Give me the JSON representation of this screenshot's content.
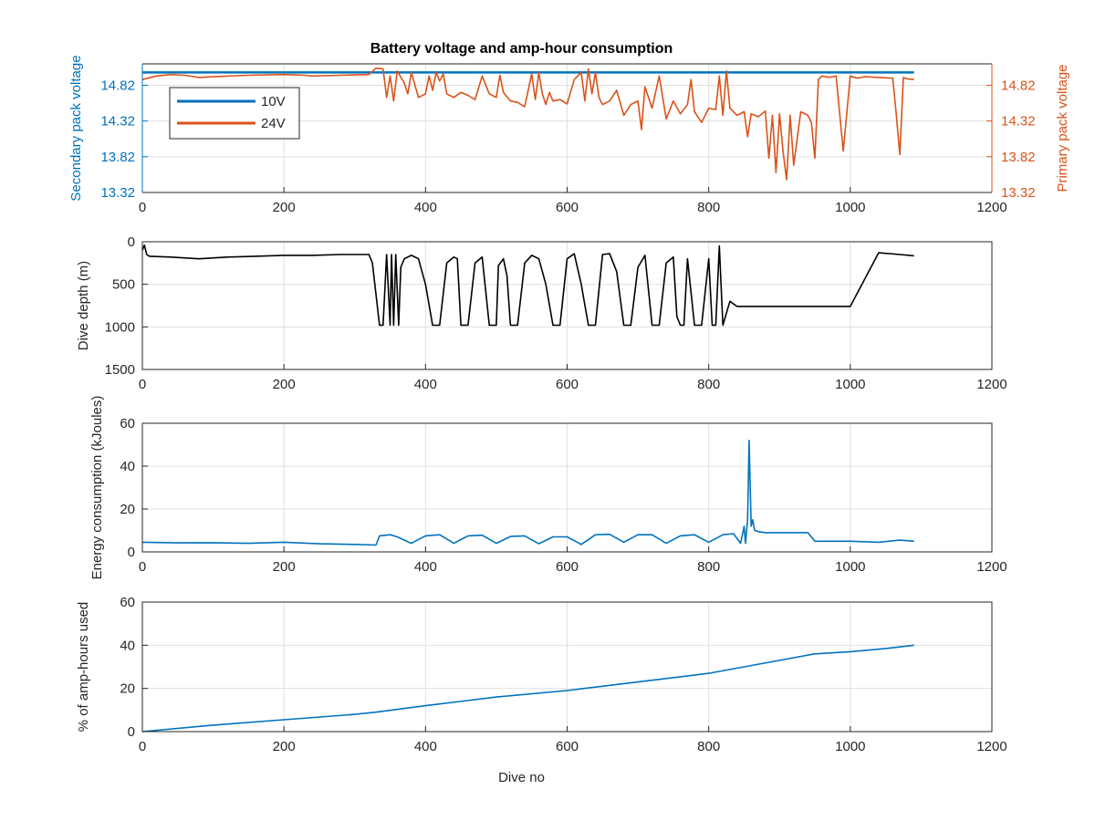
{
  "chart_data": [
    {
      "type": "line",
      "title": "Battery voltage and amp-hour consumption",
      "xlabel": "",
      "ylabel": "Secondary pack voltage",
      "ylabel_right": "Primary pack voltage",
      "xlim": [
        0,
        1200
      ],
      "ylim": [
        13.32,
        15.12
      ],
      "ylim_right": [
        13.32,
        15.12
      ],
      "x_ticks": [
        "0",
        "200",
        "400",
        "600",
        "800",
        "1000",
        "1200"
      ],
      "y_ticks": [
        "13.32",
        "13.82",
        "14.32",
        "14.82"
      ],
      "y_ticks_right": [
        "13.32",
        "13.82",
        "14.32",
        "14.82"
      ],
      "grid": true,
      "legend": "top-left",
      "colors": {
        "left_axis": "#0072BD",
        "right_axis": "#D95319"
      },
      "series": [
        {
          "name": "10V",
          "color": "#0072BD",
          "axis": "left",
          "x": [
            0,
            1090
          ],
          "y": [
            15.0,
            15.0
          ]
        },
        {
          "name": "24V",
          "color": "#D95319",
          "axis": "right",
          "x": [
            0,
            20,
            40,
            60,
            80,
            100,
            150,
            200,
            230,
            240,
            280,
            320,
            330,
            340,
            345,
            350,
            355,
            360,
            370,
            375,
            380,
            390,
            400,
            405,
            410,
            415,
            420,
            425,
            430,
            440,
            450,
            460,
            470,
            480,
            490,
            500,
            505,
            510,
            520,
            530,
            540,
            550,
            555,
            560,
            565,
            570,
            575,
            580,
            590,
            600,
            610,
            620,
            625,
            630,
            635,
            640,
            645,
            650,
            660,
            670,
            680,
            690,
            700,
            705,
            710,
            720,
            730,
            740,
            750,
            760,
            770,
            775,
            780,
            790,
            800,
            810,
            815,
            820,
            825,
            830,
            840,
            850,
            855,
            860,
            870,
            880,
            885,
            890,
            895,
            900,
            905,
            910,
            915,
            920,
            930,
            940,
            945,
            950,
            955,
            960,
            970,
            980,
            990,
            1000,
            1010,
            1020,
            1040,
            1060,
            1065,
            1070,
            1075,
            1080,
            1090
          ],
          "y": [
            14.9,
            14.95,
            14.97,
            14.96,
            14.93,
            14.94,
            14.96,
            14.97,
            14.96,
            14.95,
            14.96,
            14.97,
            15.06,
            15.05,
            14.65,
            14.95,
            14.6,
            15.02,
            14.85,
            14.7,
            15.0,
            14.65,
            14.7,
            14.95,
            14.75,
            15.0,
            14.88,
            14.98,
            14.7,
            14.65,
            14.72,
            14.68,
            14.62,
            14.95,
            14.7,
            14.65,
            14.96,
            14.72,
            14.6,
            14.58,
            14.52,
            14.98,
            14.62,
            15.0,
            14.7,
            14.55,
            14.72,
            14.6,
            14.62,
            14.56,
            14.9,
            15.0,
            14.6,
            15.05,
            14.7,
            15.0,
            14.65,
            14.55,
            14.6,
            14.75,
            14.4,
            14.55,
            14.6,
            14.2,
            14.8,
            14.5,
            14.95,
            14.35,
            14.6,
            14.42,
            14.55,
            14.9,
            14.45,
            14.3,
            14.5,
            14.48,
            14.95,
            14.4,
            15.02,
            14.5,
            14.4,
            14.45,
            14.1,
            14.42,
            14.38,
            14.46,
            13.8,
            14.4,
            13.6,
            14.42,
            13.9,
            13.5,
            14.4,
            13.7,
            14.45,
            14.4,
            14.3,
            13.8,
            14.9,
            14.95,
            14.93,
            14.95,
            13.9,
            14.95,
            14.92,
            14.94,
            14.93,
            14.92,
            14.4,
            13.85,
            14.93,
            14.91,
            14.9
          ]
        }
      ]
    },
    {
      "type": "line",
      "xlabel": "",
      "ylabel": "Dive depth (m)",
      "xlim": [
        0,
        1200
      ],
      "ylim": [
        0,
        1500
      ],
      "y_reversed": true,
      "x_ticks": [
        "0",
        "200",
        "400",
        "600",
        "800",
        "1000",
        "1200"
      ],
      "y_ticks": [
        "0",
        "500",
        "1000",
        "1500"
      ],
      "grid": true,
      "series": [
        {
          "color": "#000000",
          "x": [
            0,
            3,
            6,
            10,
            40,
            80,
            120,
            160,
            200,
            240,
            280,
            300,
            320,
            325,
            335,
            340,
            345,
            350,
            352,
            355,
            358,
            362,
            365,
            370,
            380,
            390,
            400,
            410,
            420,
            430,
            440,
            445,
            450,
            460,
            470,
            480,
            490,
            500,
            503,
            510,
            515,
            520,
            530,
            540,
            550,
            560,
            570,
            580,
            590,
            600,
            610,
            620,
            630,
            640,
            650,
            660,
            670,
            680,
            690,
            700,
            710,
            720,
            730,
            740,
            750,
            755,
            760,
            765,
            770,
            780,
            790,
            800,
            805,
            810,
            815,
            820,
            830,
            840,
            845,
            850,
            852,
            855,
            858,
            860,
            862,
            866,
            870,
            880,
            900,
            920,
            940,
            945,
            950,
            955,
            960,
            1000,
            1040,
            1070,
            1090
          ],
          "y": [
            100,
            40,
            150,
            170,
            180,
            200,
            180,
            170,
            160,
            160,
            150,
            150,
            150,
            250,
            980,
            980,
            150,
            980,
            150,
            980,
            150,
            980,
            300,
            200,
            160,
            200,
            500,
            980,
            980,
            250,
            180,
            200,
            980,
            980,
            250,
            180,
            980,
            980,
            280,
            200,
            400,
            980,
            980,
            250,
            160,
            200,
            500,
            980,
            980,
            200,
            140,
            500,
            980,
            980,
            150,
            140,
            350,
            980,
            980,
            300,
            160,
            980,
            980,
            250,
            180,
            880,
            980,
            980,
            200,
            980,
            980,
            200,
            980,
            980,
            50,
            980,
            700,
            760,
            760,
            760,
            760,
            760,
            760,
            760,
            760,
            760,
            760,
            760,
            760,
            760,
            760,
            760,
            760,
            760,
            760,
            760,
            130,
            150,
            165
          ]
        }
      ]
    },
    {
      "type": "line",
      "xlabel": "",
      "ylabel": "Energy consumption (kJoules)",
      "xlim": [
        0,
        1200
      ],
      "ylim": [
        0,
        60
      ],
      "x_ticks": [
        "0",
        "200",
        "400",
        "600",
        "800",
        "1000",
        "1200"
      ],
      "y_ticks": [
        "0",
        "20",
        "40",
        "60"
      ],
      "grid": true,
      "series": [
        {
          "color": "#0072BD",
          "x": [
            0,
            50,
            100,
            150,
            200,
            250,
            300,
            330,
            335,
            350,
            360,
            380,
            400,
            420,
            440,
            460,
            480,
            500,
            520,
            540,
            560,
            580,
            600,
            620,
            640,
            660,
            680,
            700,
            720,
            740,
            760,
            780,
            800,
            820,
            835,
            845,
            850,
            852,
            855,
            857,
            860,
            862,
            865,
            870,
            880,
            900,
            920,
            940,
            950,
            960,
            1000,
            1040,
            1070,
            1090
          ],
          "y": [
            4.5,
            4.2,
            4.3,
            4.0,
            4.5,
            3.8,
            3.5,
            3.2,
            7.5,
            8.0,
            7.0,
            4.0,
            7.5,
            8.0,
            4.0,
            7.5,
            7.8,
            4.0,
            7.2,
            7.5,
            3.8,
            7.0,
            7.0,
            3.5,
            8.0,
            8.2,
            4.5,
            8.0,
            8.0,
            4.0,
            7.5,
            8.0,
            4.5,
            8.0,
            8.5,
            4.0,
            12.0,
            4.0,
            15.0,
            52.0,
            12.0,
            15.0,
            10.0,
            9.5,
            9.0,
            9.0,
            9.0,
            9.0,
            5.0,
            5.0,
            5.0,
            4.5,
            5.5,
            5.0
          ]
        }
      ]
    },
    {
      "type": "line",
      "xlabel": "Dive no",
      "ylabel": "% of amp-hours used",
      "xlim": [
        0,
        1200
      ],
      "ylim": [
        0,
        60
      ],
      "x_ticks": [
        "0",
        "200",
        "400",
        "600",
        "800",
        "1000",
        "1200"
      ],
      "y_ticks": [
        "0",
        "20",
        "40",
        "60"
      ],
      "grid": true,
      "series": [
        {
          "color": "#0072BD",
          "x": [
            0,
            100,
            200,
            300,
            330,
            400,
            500,
            600,
            700,
            800,
            850,
            900,
            950,
            1000,
            1050,
            1090
          ],
          "y": [
            0,
            3,
            5.5,
            8,
            9,
            12,
            16,
            19,
            23,
            27,
            30,
            33,
            36,
            37,
            38.5,
            40
          ]
        }
      ]
    }
  ]
}
